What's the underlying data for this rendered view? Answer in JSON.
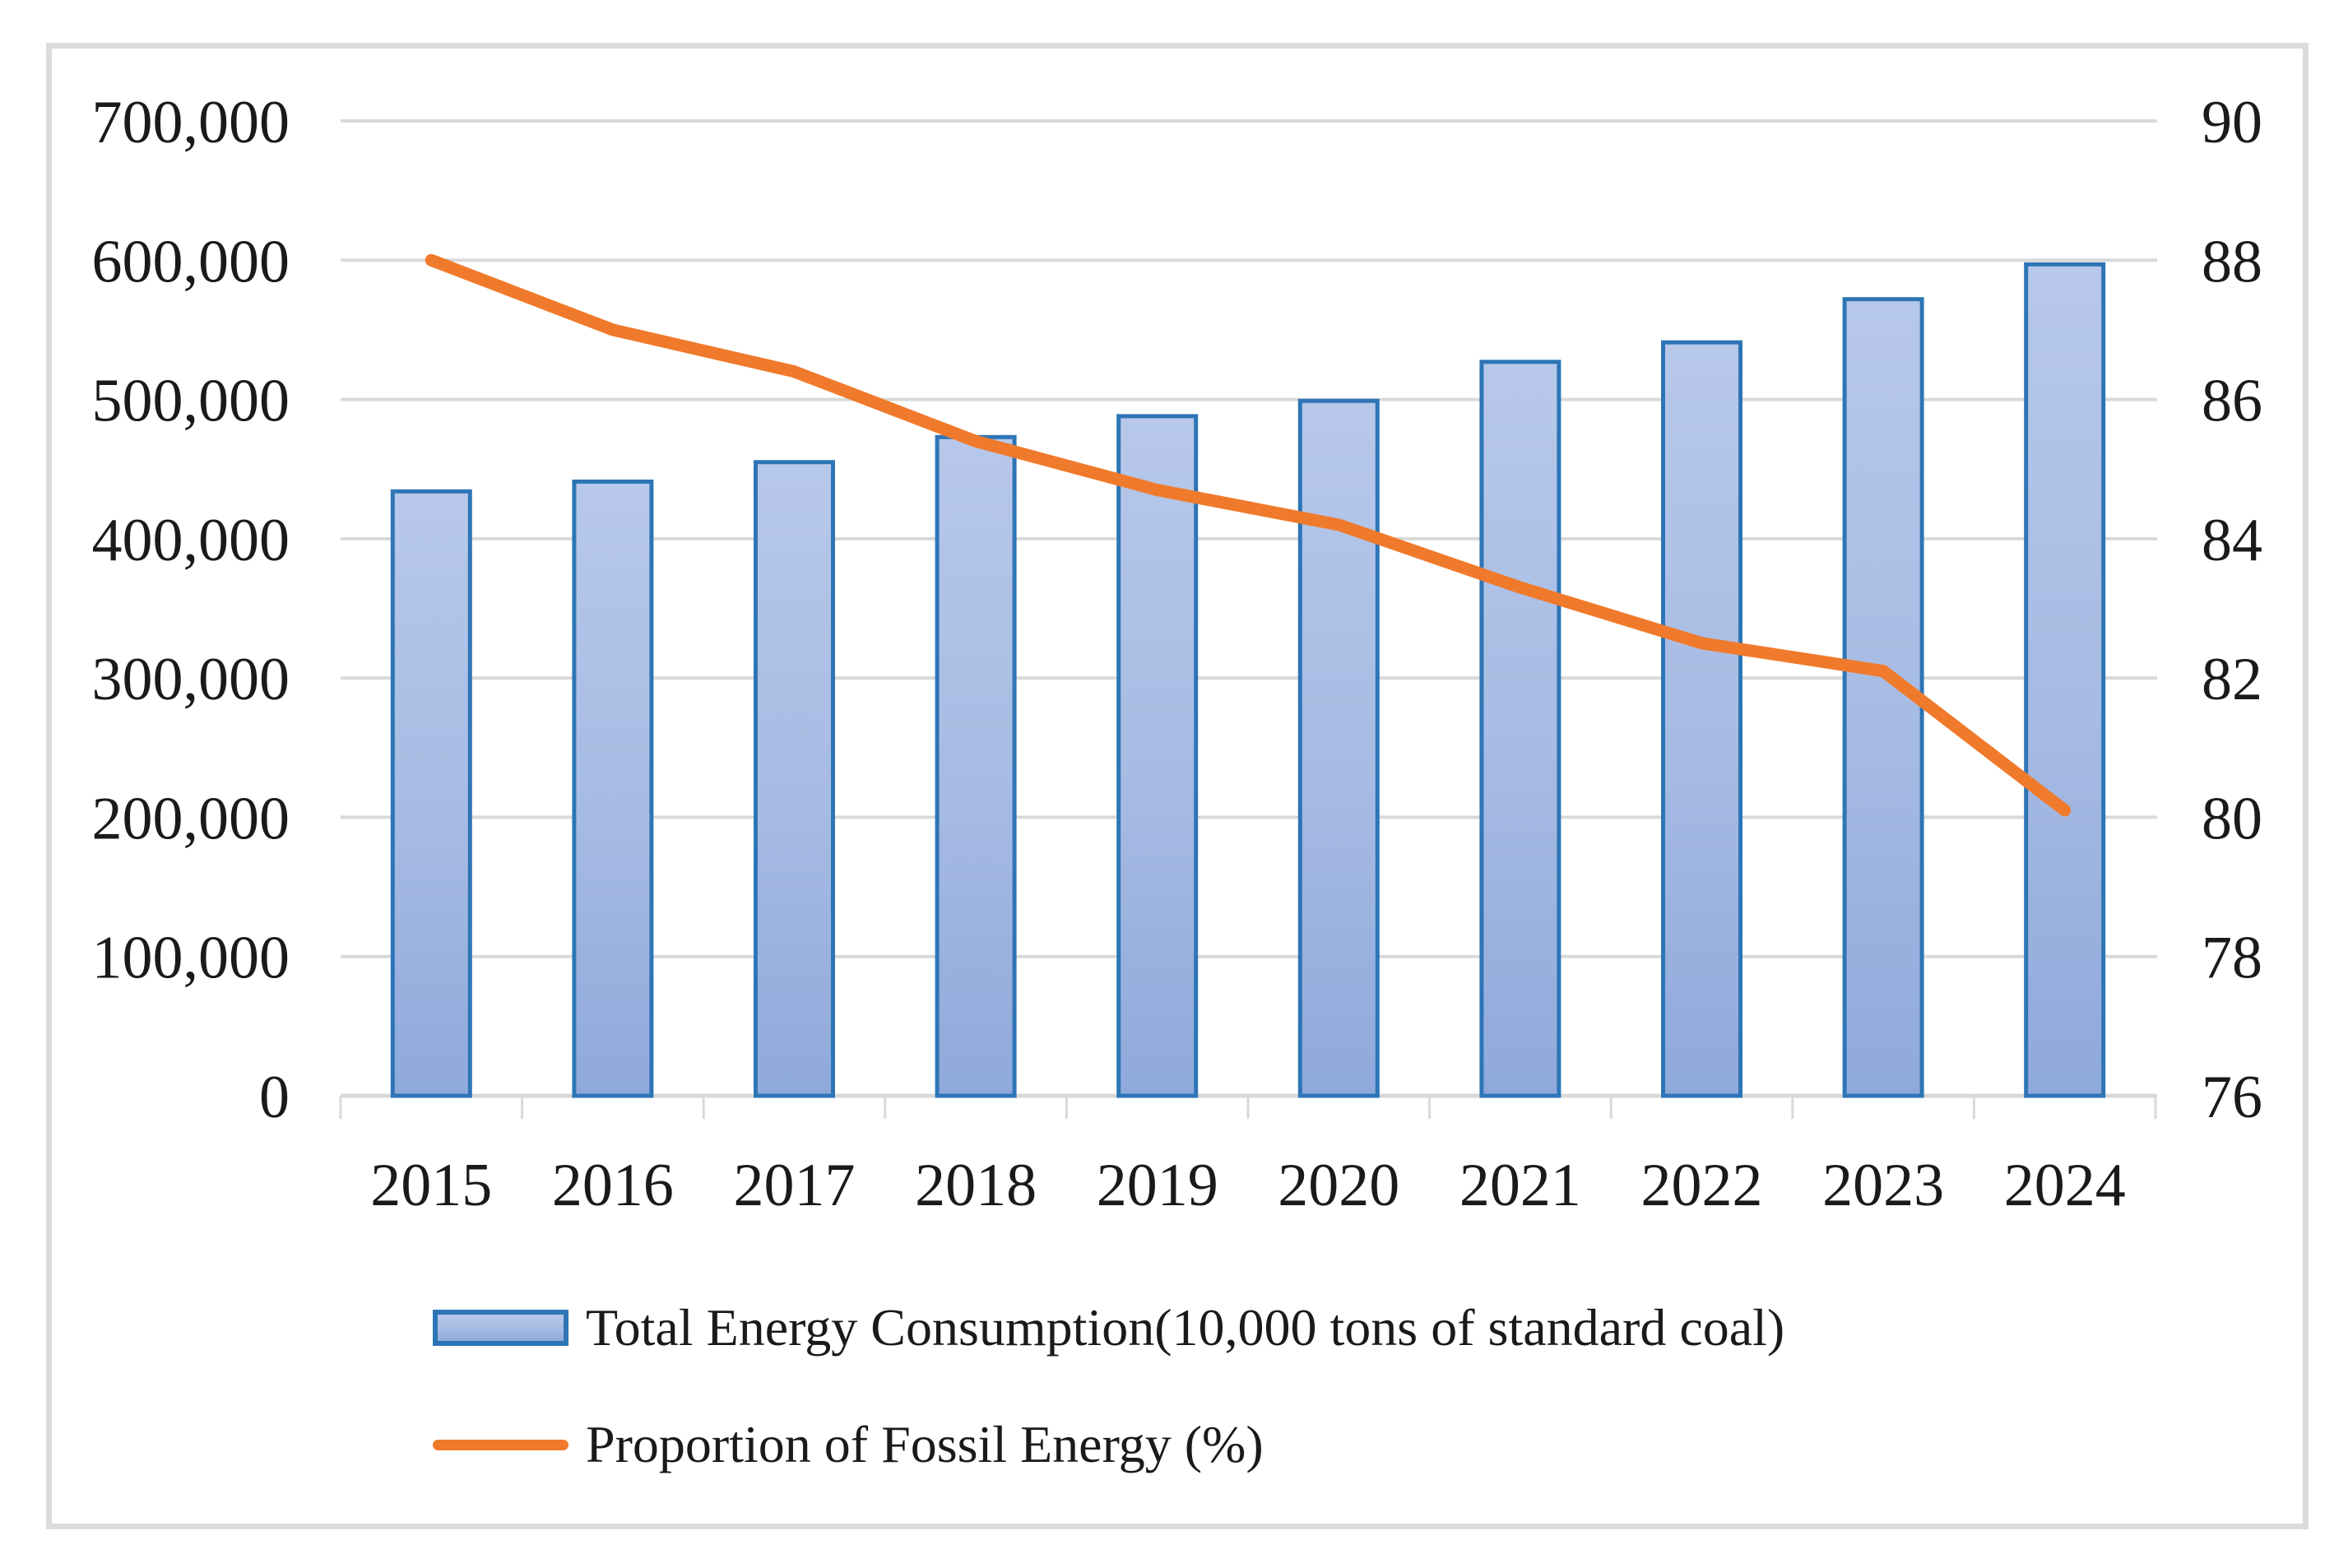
{
  "chart_data": {
    "type": "combo",
    "categories": [
      "2015",
      "2016",
      "2017",
      "2018",
      "2019",
      "2020",
      "2021",
      "2022",
      "2023",
      "2024"
    ],
    "series": [
      {
        "name": "Total Energy Consumption(10,000 tons of standard coal)",
        "type": "bar",
        "axis": "left",
        "values": [
          434000,
          441000,
          455000,
          473000,
          488000,
          499000,
          527000,
          541000,
          572000,
          597000
        ]
      },
      {
        "name": "Proportion of Fossil Energy (%)",
        "type": "line",
        "axis": "right",
        "values": [
          88.0,
          87.0,
          86.4,
          85.4,
          84.7,
          84.2,
          83.3,
          82.5,
          82.1,
          80.1
        ]
      }
    ],
    "left_axis": {
      "min": 0,
      "max": 700000,
      "step": 100000,
      "tick_labels": [
        "0",
        "100,000",
        "200,000",
        "300,000",
        "400,000",
        "500,000",
        "600,000",
        "700,000"
      ]
    },
    "right_axis": {
      "min": 76,
      "max": 90,
      "step": 2,
      "tick_labels": [
        "76",
        "78",
        "80",
        "82",
        "84",
        "86",
        "88",
        "90"
      ]
    },
    "grid": true,
    "legend_position": "bottom"
  },
  "legend": {
    "series1_label": "Total Energy Consumption(10,000 tons of standard coal)",
    "series2_label": "Proportion of Fossil Energy (%)"
  },
  "colors": {
    "bar_fill_top": "#b7c8ea",
    "bar_fill_bottom": "#8ea9db",
    "bar_border": "#2e75b6",
    "line": "#f07a2b",
    "gridline": "#d9d9d9",
    "frame_border": "#dbdbdb",
    "text": "#1a1a1a",
    "background": "#ffffff"
  }
}
